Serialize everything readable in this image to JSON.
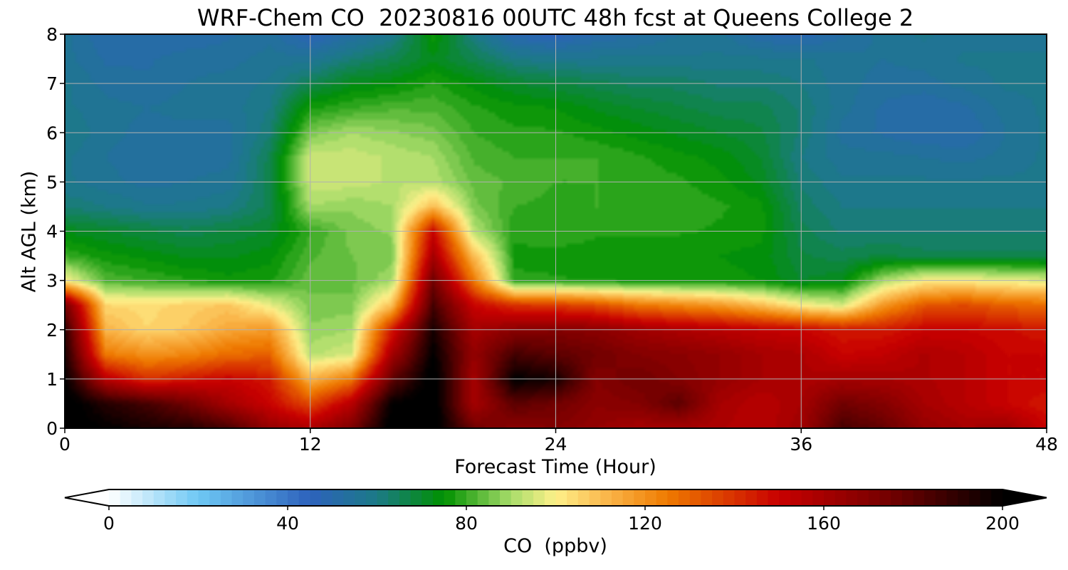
{
  "chart_data": {
    "type": "heatmap",
    "title": "WRF-Chem CO  20230816 00UTC 48h fcst at Queens College 2",
    "xlabel": "Forecast Time (Hour)",
    "ylabel": "Alt AGL (km)",
    "xlim": [
      0,
      48
    ],
    "ylim": [
      0,
      8
    ],
    "xticks": [
      0,
      12,
      24,
      36,
      48
    ],
    "yticks": [
      0,
      1,
      2,
      3,
      4,
      5,
      6,
      7,
      8
    ],
    "grid": true,
    "colorbar": {
      "label": "CO  (ppbv)",
      "orientation": "horizontal",
      "position": "bottom",
      "range": [
        0,
        200
      ],
      "ticks": [
        0,
        40,
        80,
        120,
        160,
        200
      ],
      "extend": "both",
      "stops": [
        {
          "v": 0,
          "c": "#ffffff"
        },
        {
          "v": 20,
          "c": "#6ec8f4"
        },
        {
          "v": 45,
          "c": "#2d62bc"
        },
        {
          "v": 60,
          "c": "#1c7a86"
        },
        {
          "v": 75,
          "c": "#009100"
        },
        {
          "v": 90,
          "c": "#a8dc6a"
        },
        {
          "v": 100,
          "c": "#fef08a"
        },
        {
          "v": 110,
          "c": "#fbbd52"
        },
        {
          "v": 125,
          "c": "#ef7a00"
        },
        {
          "v": 150,
          "c": "#c80000"
        },
        {
          "v": 175,
          "c": "#720000"
        },
        {
          "v": 200,
          "c": "#000000"
        }
      ]
    },
    "field": {
      "x": [
        0,
        2,
        4,
        6,
        8,
        10,
        12,
        14,
        16,
        18,
        20,
        22,
        24,
        26,
        28,
        30,
        32,
        34,
        36,
        38,
        40,
        42,
        44,
        46,
        48
      ],
      "y": [
        0,
        0.5,
        1,
        1.5,
        2,
        2.5,
        3,
        3.5,
        4,
        4.5,
        5,
        5.5,
        6,
        6.5,
        7,
        7.5,
        8
      ],
      "values": [
        [
          205,
          200,
          195,
          192,
          185,
          165,
          158,
          172,
          205,
          205,
          175,
          168,
          170,
          165,
          160,
          160,
          158,
          155,
          162,
          185,
          178,
          165,
          160,
          162,
          150
        ],
        [
          205,
          192,
          185,
          175,
          160,
          150,
          135,
          155,
          200,
          205,
          160,
          180,
          175,
          168,
          170,
          180,
          160,
          155,
          160,
          175,
          170,
          160,
          155,
          150,
          145
        ],
        [
          200,
          155,
          140,
          145,
          150,
          145,
          112,
          125,
          178,
          205,
          160,
          200,
          195,
          170,
          175,
          170,
          165,
          160,
          158,
          160,
          160,
          158,
          155,
          150,
          150
        ],
        [
          195,
          125,
          120,
          122,
          128,
          130,
          92,
          95,
          160,
          200,
          165,
          185,
          180,
          175,
          170,
          168,
          165,
          160,
          158,
          150,
          152,
          158,
          155,
          150,
          150
        ],
        [
          190,
          112,
          105,
          108,
          115,
          118,
          88,
          90,
          145,
          195,
          160,
          168,
          170,
          168,
          162,
          158,
          155,
          152,
          150,
          145,
          145,
          150,
          150,
          148,
          145
        ],
        [
          175,
          105,
          104,
          106,
          108,
          98,
          86,
          86,
          110,
          185,
          150,
          140,
          138,
          134,
          126,
          122,
          118,
          110,
          100,
          95,
          118,
          132,
          135,
          130,
          128
        ],
        [
          100,
          82,
          80,
          78,
          76,
          77,
          84,
          84,
          90,
          175,
          125,
          78,
          78,
          77,
          76,
          76,
          76,
          75,
          70,
          72,
          90,
          100,
          100,
          98,
          96
        ],
        [
          80,
          76,
          74,
          72,
          72,
          74,
          82,
          85,
          86,
          160,
          110,
          77,
          76,
          76,
          75,
          75,
          75,
          74,
          68,
          66,
          68,
          66,
          66,
          66,
          66
        ],
        [
          72,
          70,
          68,
          66,
          68,
          70,
          80,
          86,
          88,
          150,
          92,
          78,
          80,
          78,
          78,
          78,
          77,
          76,
          66,
          62,
          62,
          62,
          62,
          62,
          62
        ],
        [
          62,
          60,
          58,
          58,
          60,
          66,
          90,
          88,
          90,
          110,
          86,
          80,
          79,
          80,
          78,
          79,
          78,
          76,
          64,
          60,
          60,
          60,
          60,
          60,
          60
        ],
        [
          58,
          56,
          54,
          55,
          56,
          66,
          94,
          94,
          92,
          92,
          84,
          82,
          80,
          80,
          79,
          78,
          76,
          72,
          62,
          58,
          58,
          58,
          58,
          58,
          58
        ],
        [
          58,
          55,
          53,
          54,
          54,
          66,
          94,
          94,
          92,
          90,
          82,
          80,
          80,
          80,
          78,
          76,
          74,
          70,
          60,
          56,
          56,
          55,
          54,
          56,
          58
        ],
        [
          60,
          56,
          54,
          54,
          54,
          62,
          86,
          90,
          88,
          86,
          80,
          78,
          78,
          76,
          74,
          72,
          70,
          68,
          62,
          54,
          52,
          50,
          50,
          55,
          58
        ],
        [
          58,
          56,
          55,
          56,
          56,
          60,
          77,
          80,
          82,
          82,
          78,
          76,
          75,
          72,
          70,
          68,
          66,
          66,
          62,
          56,
          52,
          50,
          52,
          56,
          58
        ],
        [
          58,
          54,
          53,
          55,
          56,
          58,
          66,
          72,
          74,
          78,
          74,
          70,
          68,
          66,
          64,
          64,
          62,
          62,
          60,
          56,
          54,
          54,
          56,
          58,
          58
        ],
        [
          56,
          52,
          52,
          54,
          54,
          56,
          56,
          62,
          66,
          72,
          66,
          60,
          58,
          58,
          58,
          58,
          58,
          58,
          58,
          56,
          55,
          56,
          58,
          58,
          58
        ],
        [
          56,
          50,
          50,
          50,
          52,
          54,
          46,
          52,
          58,
          76,
          60,
          48,
          46,
          50,
          52,
          55,
          56,
          50,
          48,
          52,
          56,
          58,
          56,
          56,
          56
        ]
      ]
    }
  }
}
